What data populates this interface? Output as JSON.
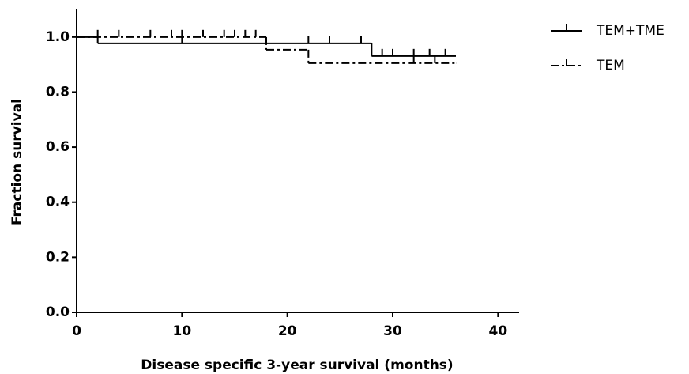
{
  "chart_data": {
    "type": "survival",
    "xlabel": "Disease specific 3-year survival (months)",
    "ylabel": "Fraction survival",
    "xlim": [
      0,
      42
    ],
    "xticks": [
      0,
      10,
      20,
      30,
      40
    ],
    "ylim": [
      0,
      1.1
    ],
    "yticks": [
      {
        "value": 0,
        "label": "0.0"
      },
      0.2,
      0.4,
      0.6,
      0.8,
      {
        "value": 1,
        "label": "1.0"
      }
    ],
    "legend": "right",
    "series": [
      {
        "name": "TEM+TME",
        "color": "#000000",
        "line_style": "solid",
        "x": [
          0,
          2,
          28,
          36
        ],
        "values": [
          1.0,
          0.977,
          0.931,
          0.931
        ],
        "censor_x": [
          10,
          22,
          24,
          27,
          29,
          30,
          32,
          33.5,
          35
        ],
        "censor_values": [
          0.977,
          0.977,
          0.977,
          0.977,
          0.931,
          0.931,
          0.931,
          0.931,
          0.931
        ]
      },
      {
        "name": "TEM",
        "color": "#000000",
        "line_style": "dashed",
        "x": [
          0,
          18,
          22,
          36
        ],
        "values": [
          1.0,
          0.954,
          0.905,
          0.905
        ],
        "censor_x": [
          2,
          4,
          7,
          9,
          10,
          12,
          14,
          15,
          16,
          17,
          32,
          34
        ],
        "censor_values": [
          1.0,
          1.0,
          1.0,
          1.0,
          1.0,
          1.0,
          1.0,
          1.0,
          1.0,
          1.0,
          0.905,
          0.905
        ]
      }
    ]
  }
}
